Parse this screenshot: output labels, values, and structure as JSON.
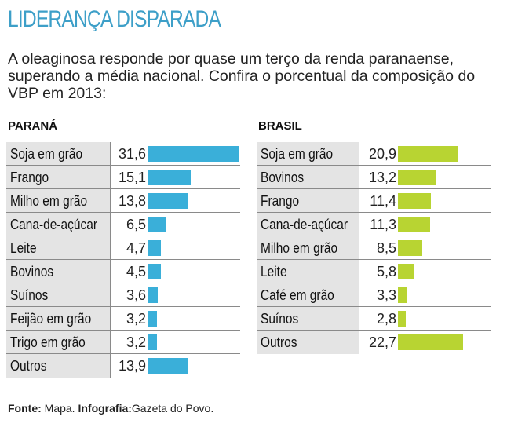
{
  "title": "LIDERANÇA DISPARADA",
  "subtitle": "A oleaginosa responde por quase um terço da renda paranaense, superando a média nacional. Confira o porcentual da composição do VBP em 2013:",
  "colors": {
    "title": "#3d9fc8",
    "parana_bar": "#3aafd9",
    "brasil_bar": "#b8d432"
  },
  "footer": {
    "fonte_label": "Fonte:",
    "fonte_value": "Mapa.",
    "infografia_label": "Infografia:",
    "infografia_value": "Gazeta do Povo."
  },
  "chart_data": [
    {
      "type": "bar",
      "orientation": "horizontal",
      "title": "PARANÁ",
      "categories": [
        "Soja em grão",
        "Frango",
        "Milho em grão",
        "Cana-de-açúcar",
        "Leite",
        "Bovinos",
        "Suínos",
        "Feijão em grão",
        "Trigo em grão",
        "Outros"
      ],
      "values": [
        31.6,
        15.1,
        13.8,
        6.5,
        4.7,
        4.5,
        3.6,
        3.2,
        3.2,
        13.9
      ],
      "labels": [
        "31,6",
        "15,1",
        "13,8",
        "6,5",
        "4,7",
        "4,5",
        "3,6",
        "3,2",
        "3,2",
        "13,9"
      ],
      "unit": "%",
      "xlim": [
        0,
        31.6
      ]
    },
    {
      "type": "bar",
      "orientation": "horizontal",
      "title": "BRASIL",
      "categories": [
        "Soja em grão",
        "Bovinos",
        "Frango",
        "Cana-de-açúcar",
        "Milho em grão",
        "Leite",
        "Café em grão",
        "Suínos",
        "Outros"
      ],
      "values": [
        20.9,
        13.2,
        11.4,
        11.3,
        8.5,
        5.8,
        3.3,
        2.8,
        22.7
      ],
      "labels": [
        "20,9",
        "13,2",
        "11,4",
        "11,3",
        "8,5",
        "5,8",
        "3,3",
        "2,8",
        "22,7"
      ],
      "unit": "%",
      "xlim": [
        0,
        31.6
      ]
    }
  ]
}
